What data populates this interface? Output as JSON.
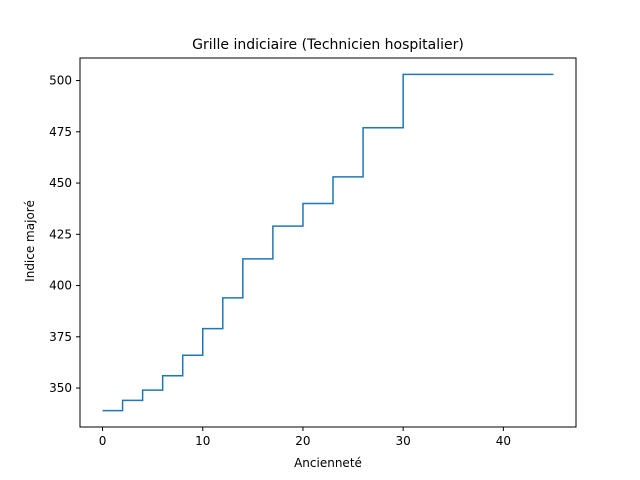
{
  "chart_data": {
    "type": "line",
    "drawstyle": "steps-post",
    "title": "Grille indiciaire (Technicien hospitalier)",
    "xlabel": "Ancienneté",
    "ylabel": "Indice majoré",
    "xlim": [
      -2.25,
      47.25
    ],
    "ylim": [
      331,
      511
    ],
    "xticks": [
      0,
      10,
      20,
      30,
      40
    ],
    "yticks": [
      350,
      375,
      400,
      425,
      450,
      475,
      500
    ],
    "grid": false,
    "line_color": "#1f77b4",
    "series": [
      {
        "x": [
          0,
          2,
          4,
          6,
          8,
          10,
          12,
          14,
          17,
          20,
          23,
          26,
          30,
          45
        ],
        "y": [
          339,
          344,
          349,
          356,
          366,
          379,
          394,
          413,
          429,
          440,
          453,
          477,
          503,
          503
        ]
      }
    ]
  }
}
